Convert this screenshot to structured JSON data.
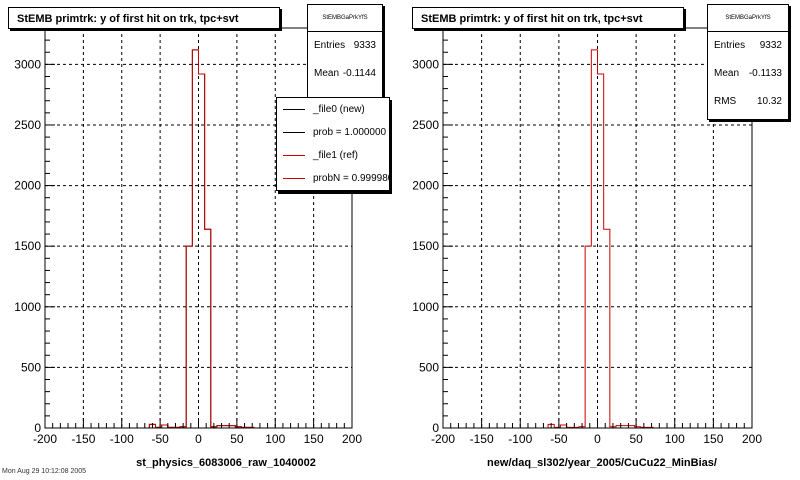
{
  "chart_data": [
    {
      "type": "histogram",
      "title": "StEMB primtrk: y of first hit on trk, tpc+svt",
      "xlabel": "st_physics_6083006_raw_1040002",
      "ylabel": "",
      "xlim": [
        -200,
        200
      ],
      "ylim": [
        0,
        3300
      ],
      "xticks": [
        "-200",
        "-150",
        "-100",
        "-50",
        "0",
        "50",
        "100",
        "150",
        "200"
      ],
      "yticks": [
        "0",
        "500",
        "1000",
        "1500",
        "2000",
        "2500",
        "3000"
      ],
      "grid": true,
      "bin_width": 8,
      "bin_start": -200,
      "series": [
        {
          "name": "_file0 (new)",
          "color": "#000000",
          "values": [
            0,
            0,
            0,
            0,
            0,
            0,
            0,
            0,
            0,
            0,
            0,
            0,
            0,
            0,
            0,
            0,
            0,
            30,
            5,
            25,
            5,
            5,
            10,
            1500,
            3120,
            2920,
            1640,
            10,
            20,
            20,
            20,
            10,
            5,
            5,
            0,
            0,
            0,
            0,
            0,
            0,
            0,
            0,
            0,
            0,
            0,
            0,
            0,
            0,
            0,
            0
          ]
        },
        {
          "name": "_file1 (ref)",
          "color": "#cc0000",
          "values": [
            0,
            0,
            0,
            0,
            0,
            0,
            0,
            0,
            0,
            0,
            0,
            0,
            0,
            0,
            0,
            0,
            0,
            30,
            5,
            25,
            5,
            5,
            10,
            1500,
            3120,
            2920,
            1640,
            10,
            20,
            20,
            20,
            10,
            5,
            5,
            0,
            0,
            0,
            0,
            0,
            0,
            0,
            0,
            0,
            0,
            0,
            0,
            0,
            0,
            0,
            0
          ]
        }
      ],
      "stats": {
        "name": "StEMBGaPrkYfS",
        "rows": [
          {
            "label": "Entries",
            "value": "9333"
          },
          {
            "label": "Mean",
            "value": "-0.1144"
          }
        ]
      },
      "legend": {
        "placement": "top-right",
        "entries": [
          {
            "text": "_file0 (new)",
            "color": "#000000"
          },
          {
            "text": "prob = 1.000000",
            "color": "#000000"
          },
          {
            "text": "_file1 (ref)",
            "color": "#cc0000"
          },
          {
            "text": "probN = 0.999980",
            "color": "#cc0000"
          }
        ]
      }
    },
    {
      "type": "histogram",
      "title": "StEMB primtrk: y of first hit on trk, tpc+svt",
      "xlabel": "new/daq_sl302/year_2005/CuCu22_MinBias/",
      "ylabel": "",
      "xlim": [
        -200,
        200
      ],
      "ylim": [
        0,
        3300
      ],
      "xticks": [
        "-200",
        "-150",
        "-100",
        "-50",
        "0",
        "50",
        "100",
        "150",
        "200"
      ],
      "yticks": [
        "0",
        "500",
        "1000",
        "1500",
        "2000",
        "2500",
        "3000"
      ],
      "grid": true,
      "bin_width": 8,
      "bin_start": -200,
      "series": [
        {
          "name": "",
          "color": "#cc0000",
          "values": [
            0,
            0,
            0,
            0,
            0,
            0,
            0,
            0,
            0,
            0,
            0,
            0,
            0,
            0,
            0,
            0,
            0,
            30,
            5,
            25,
            5,
            5,
            10,
            1500,
            3120,
            2920,
            1640,
            10,
            20,
            20,
            20,
            10,
            5,
            5,
            0,
            0,
            0,
            0,
            0,
            0,
            0,
            0,
            0,
            0,
            0,
            0,
            0,
            0,
            0,
            0
          ]
        }
      ],
      "stats": {
        "name": "StEMBGaPrkYfS",
        "rows": [
          {
            "label": "Entries",
            "value": "9332"
          },
          {
            "label": "Mean",
            "value": "-0.1133"
          },
          {
            "label": "RMS",
            "value": "10.32"
          }
        ]
      }
    }
  ],
  "footer": "Mon Aug 29 10:12:08 2005"
}
